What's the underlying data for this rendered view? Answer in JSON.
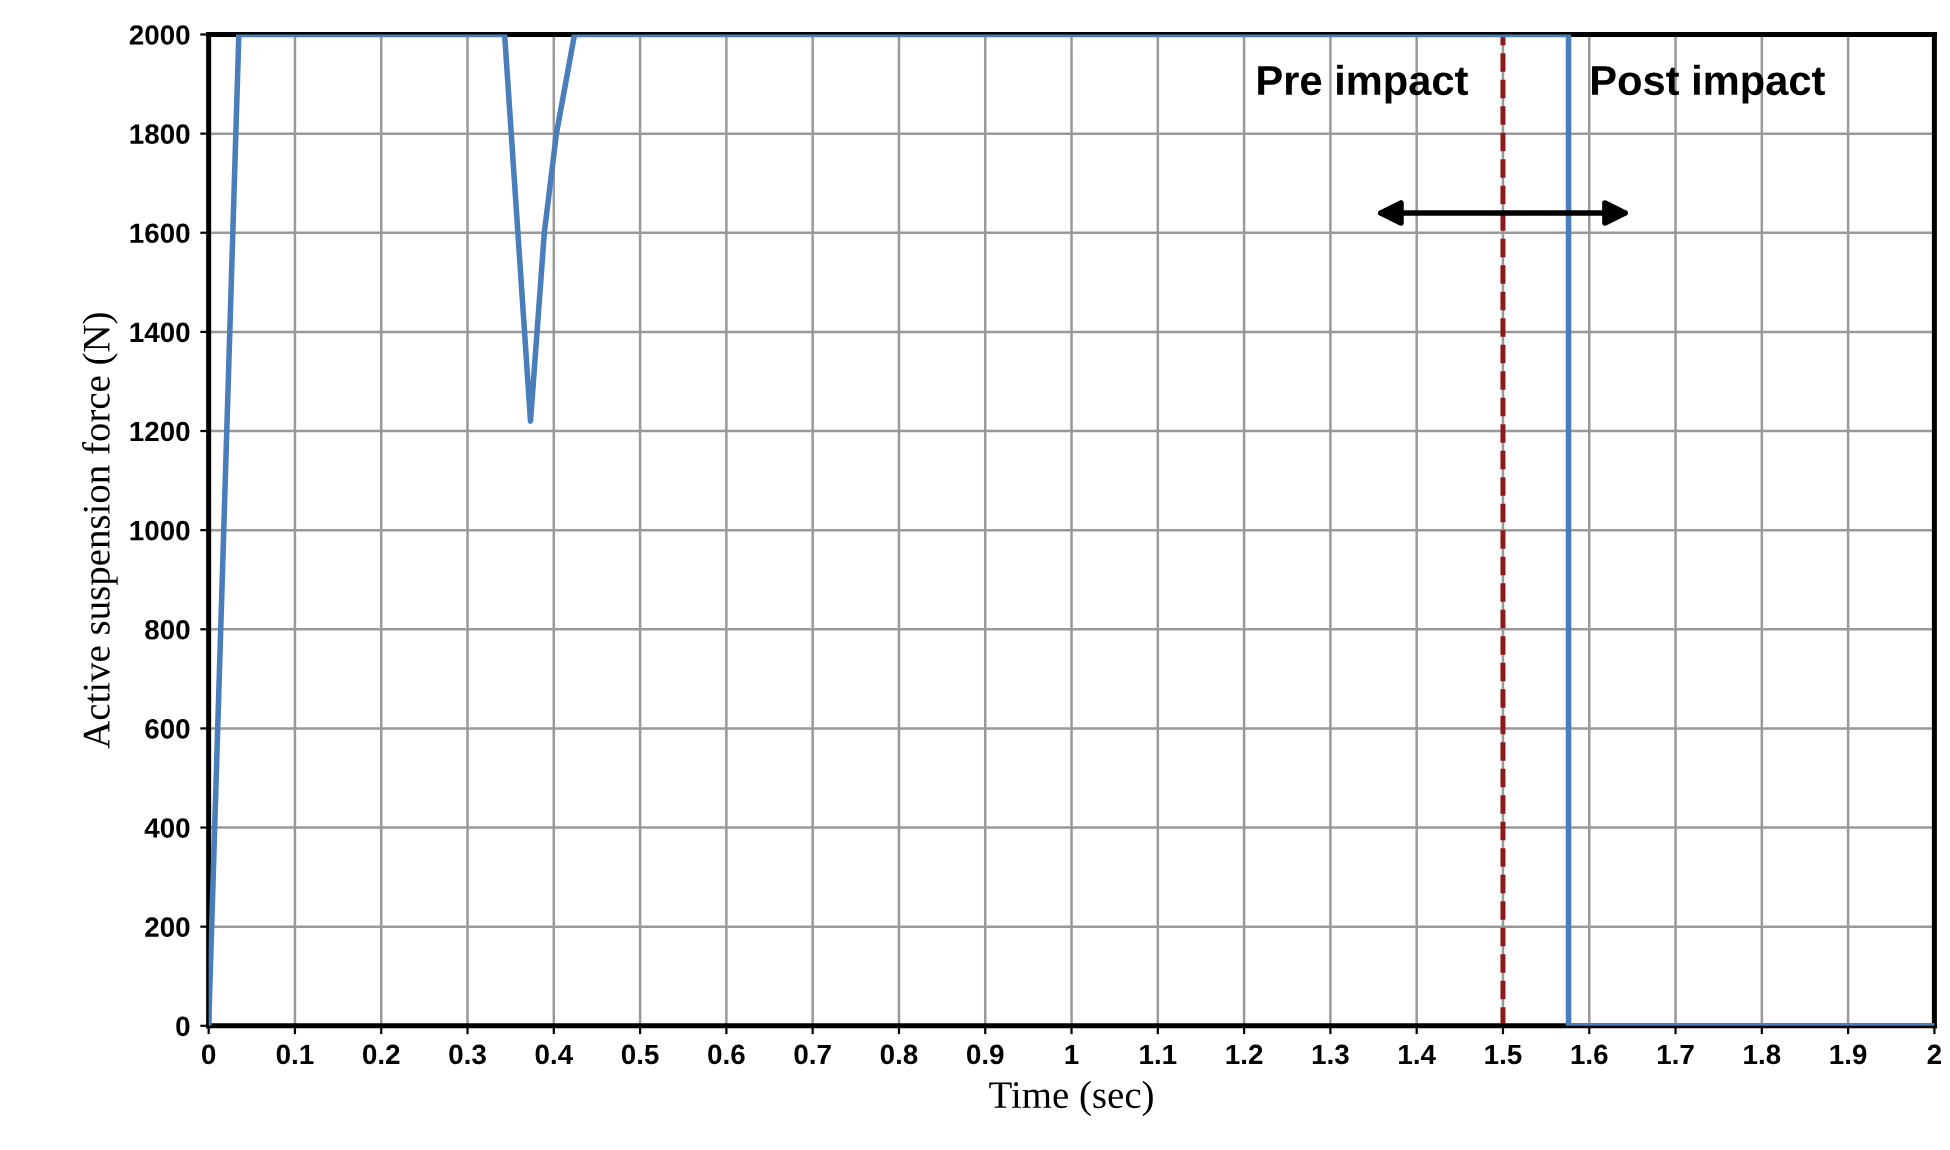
{
  "chart_data": {
    "type": "line",
    "xlabel": "Time (sec)",
    "ylabel": "Active suspension force (N)",
    "xlim": [
      0,
      2
    ],
    "ylim": [
      0,
      2000
    ],
    "xticks": [
      0,
      0.1,
      0.2,
      0.3,
      0.4,
      0.5,
      0.6,
      0.7,
      0.8,
      0.9,
      1,
      1.1,
      1.2,
      1.3,
      1.4,
      1.5,
      1.6,
      1.7,
      1.8,
      1.9,
      2
    ],
    "yticks": [
      0,
      200,
      400,
      600,
      800,
      1000,
      1200,
      1400,
      1600,
      1800,
      2000
    ],
    "grid": true,
    "marker": "none",
    "line_style": "solid",
    "series": [
      {
        "color": "#4a7ebb",
        "x": [
          0,
          0.035,
          0.343,
          0.373,
          0.389,
          0.403,
          0.424,
          1.576,
          1.576,
          2
        ],
        "values": [
          0,
          2000,
          2000,
          1220,
          1600,
          1800,
          2000,
          2000,
          0,
          0
        ]
      }
    ],
    "ref_lines": [
      {
        "axis": "x",
        "value": 1.5,
        "color": "#8b1a1a",
        "line_style": "dashed"
      }
    ],
    "annotations": [
      "Pre impact",
      "Post impact"
    ]
  }
}
